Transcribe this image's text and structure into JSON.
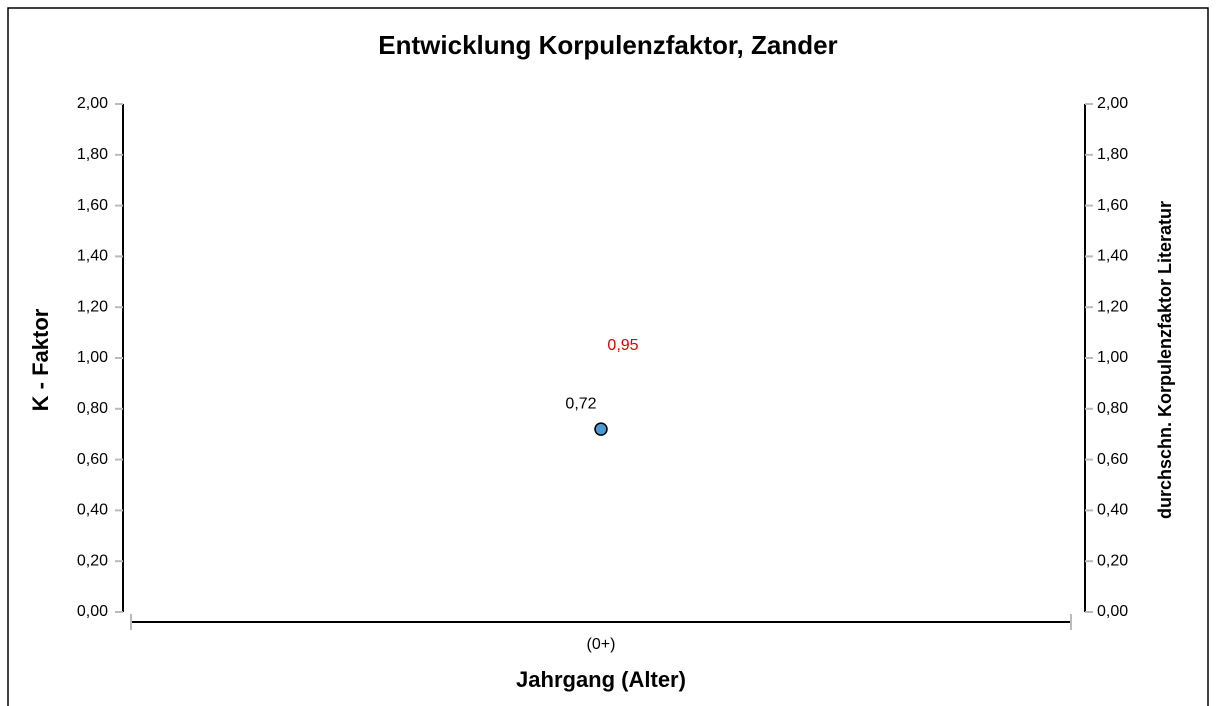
{
  "chart_data": {
    "type": "scatter",
    "title": "Entwicklung Korpulenzfaktor, Zander",
    "x_label": "Jahrgang (Alter)",
    "y_label": "K - Faktor",
    "y2_label": "durchschn. Korpulenzfaktor Literatur",
    "categories": [
      "(0+)"
    ],
    "series": [
      {
        "color": "#4a9ad4",
        "values": [
          0.72
        ],
        "value_labels": [
          "0,72"
        ]
      },
      {
        "color": "#e00000",
        "values": [
          0.95
        ],
        "value_labels": [
          "0,95"
        ],
        "axis": "y2"
      }
    ],
    "ylim": [
      0,
      2
    ],
    "yticks": [
      {
        "value": 0,
        "label": "0,00"
      },
      {
        "value": 0.2,
        "label": "0,20"
      },
      {
        "value": 0.4,
        "label": "0,40"
      },
      {
        "value": 0.6,
        "label": "0,60"
      },
      {
        "value": 0.8,
        "label": "0,80"
      },
      {
        "value": 1,
        "label": "1,00"
      },
      {
        "value": 1.2,
        "label": "1,20"
      },
      {
        "value": 1.4,
        "label": "1,40"
      },
      {
        "value": 1.6,
        "label": "1,60"
      },
      {
        "value": 1.8,
        "label": "1,80"
      },
      {
        "value": 2,
        "label": "2,00"
      }
    ],
    "y2lim": [
      0,
      2
    ],
    "y2ticks": [
      {
        "value": 0,
        "label": "0,00"
      },
      {
        "value": 0.2,
        "label": "0,20"
      },
      {
        "value": 0.4,
        "label": "0,40"
      },
      {
        "value": 0.6,
        "label": "0,60"
      },
      {
        "value": 0.8,
        "label": "0,80"
      },
      {
        "value": 1,
        "label": "1,00"
      },
      {
        "value": 1.2,
        "label": "1,20"
      },
      {
        "value": 1.4,
        "label": "1,40"
      },
      {
        "value": 1.6,
        "label": "1,60"
      },
      {
        "value": 1.8,
        "label": "1,80"
      },
      {
        "value": 2,
        "label": "2,00"
      }
    ]
  }
}
